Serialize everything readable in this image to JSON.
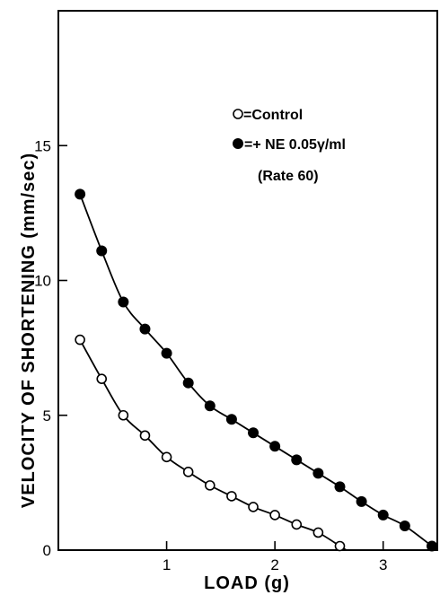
{
  "chart_data": {
    "type": "scatter",
    "xlabel": "LOAD (g)",
    "ylabel": "VELOCITY OF SHORTENING (mm/sec)",
    "xlim": [
      0,
      3.5
    ],
    "ylim": [
      0,
      20
    ],
    "x_ticks": [
      1,
      2,
      3
    ],
    "y_ticks": [
      0,
      5,
      10,
      15
    ],
    "grid": false,
    "legend_position": "upper-right",
    "legend": {
      "control": "=Control",
      "ne": "=+ NE 0.05γ/ml",
      "note": "(Rate 60)"
    },
    "series": [
      {
        "name": "Control",
        "marker": "open-circle",
        "x": [
          0.2,
          0.4,
          0.6,
          0.8,
          1.0,
          1.2,
          1.4,
          1.6,
          1.8,
          2.0,
          2.2,
          2.4,
          2.6
        ],
        "y": [
          7.8,
          6.35,
          5.0,
          4.25,
          3.45,
          2.9,
          2.4,
          2.0,
          1.6,
          1.3,
          0.95,
          0.65,
          0.15
        ]
      },
      {
        "name": "+ NE 0.05γ/ml",
        "marker": "filled-circle",
        "x": [
          0.2,
          0.4,
          0.6,
          0.8,
          1.0,
          1.2,
          1.4,
          1.6,
          1.8,
          2.0,
          2.2,
          2.4,
          2.6,
          2.8,
          3.0,
          3.2,
          3.45
        ],
        "y": [
          13.2,
          11.1,
          9.2,
          8.2,
          7.3,
          6.2,
          5.35,
          4.85,
          4.35,
          3.85,
          3.35,
          2.85,
          2.35,
          1.8,
          1.3,
          0.9,
          0.15
        ]
      }
    ]
  }
}
